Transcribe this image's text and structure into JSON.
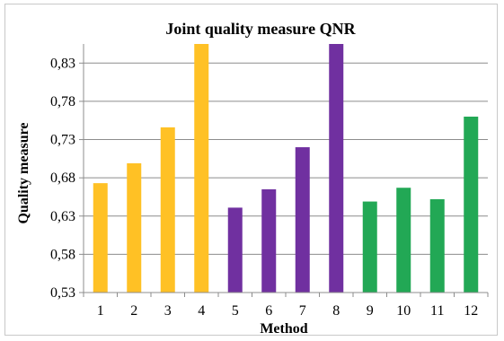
{
  "chart_data": {
    "type": "bar",
    "title": "Joint quality measure QNR",
    "xlabel": "Method",
    "ylabel": "Quality measure",
    "categories": [
      "1",
      "2",
      "3",
      "4",
      "5",
      "6",
      "7",
      "8",
      "9",
      "10",
      "11",
      "12"
    ],
    "values": [
      0.673,
      0.699,
      0.746,
      0.855,
      0.641,
      0.665,
      0.72,
      0.855,
      0.649,
      0.667,
      0.652,
      0.76
    ],
    "bar_colors": [
      "#ffc125",
      "#ffc125",
      "#ffc125",
      "#ffc125",
      "#7030a0",
      "#7030a0",
      "#7030a0",
      "#7030a0",
      "#22a855",
      "#22a855",
      "#22a855",
      "#22a855"
    ],
    "yticks": [
      0.53,
      0.58,
      0.63,
      0.68,
      0.73,
      0.78,
      0.83
    ],
    "ytick_labels": [
      "0,53",
      "0,58",
      "0,63",
      "0,68",
      "0,73",
      "0,78",
      "0,83"
    ],
    "ylim": [
      0.53,
      0.855
    ],
    "grid": true,
    "legend": "none"
  }
}
